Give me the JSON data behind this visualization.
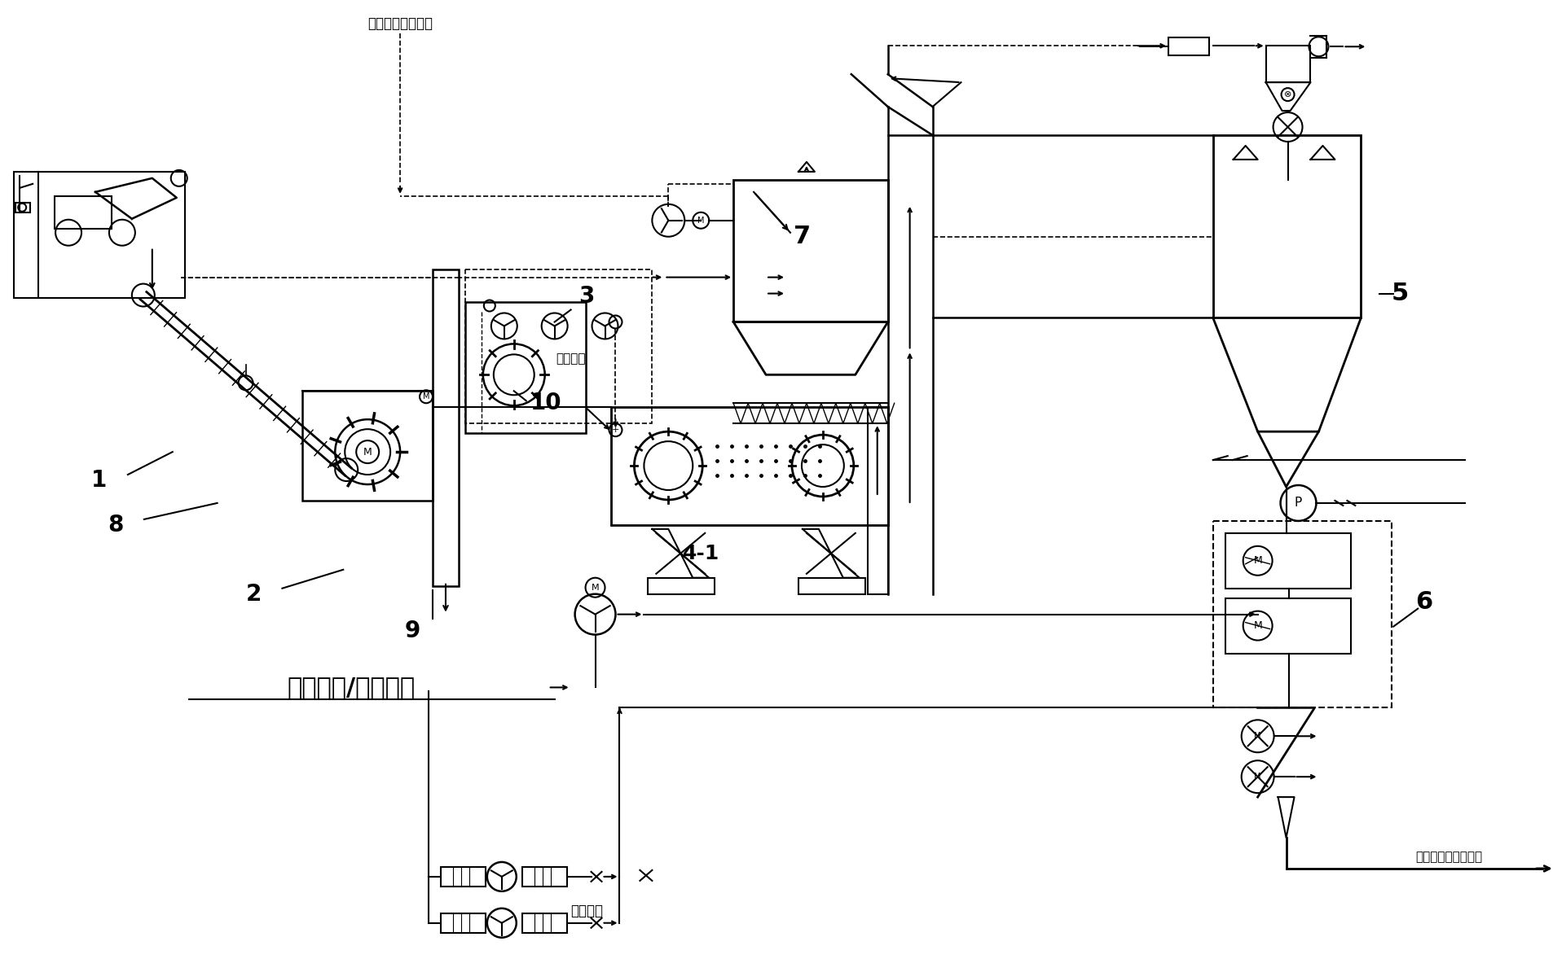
{
  "background_color": "#ffffff",
  "line_color": "#000000",
  "figsize": [
    19.22,
    11.94
  ],
  "dpi": 100,
  "labels": {
    "top_label": "水泥窑窑头篦冷机",
    "label1": "1",
    "label2": "2",
    "label3": "3",
    "label4_1": "4-1",
    "label5": "5",
    "label6": "6",
    "label7": "7",
    "label8": "8",
    "label9": "9",
    "label10": "10",
    "workshop_exhaust": "车间废气",
    "waste_water": "生产废水/其他来源",
    "power_fan": "动力风机",
    "outlet": "水泥窑分解炉或窑头"
  }
}
